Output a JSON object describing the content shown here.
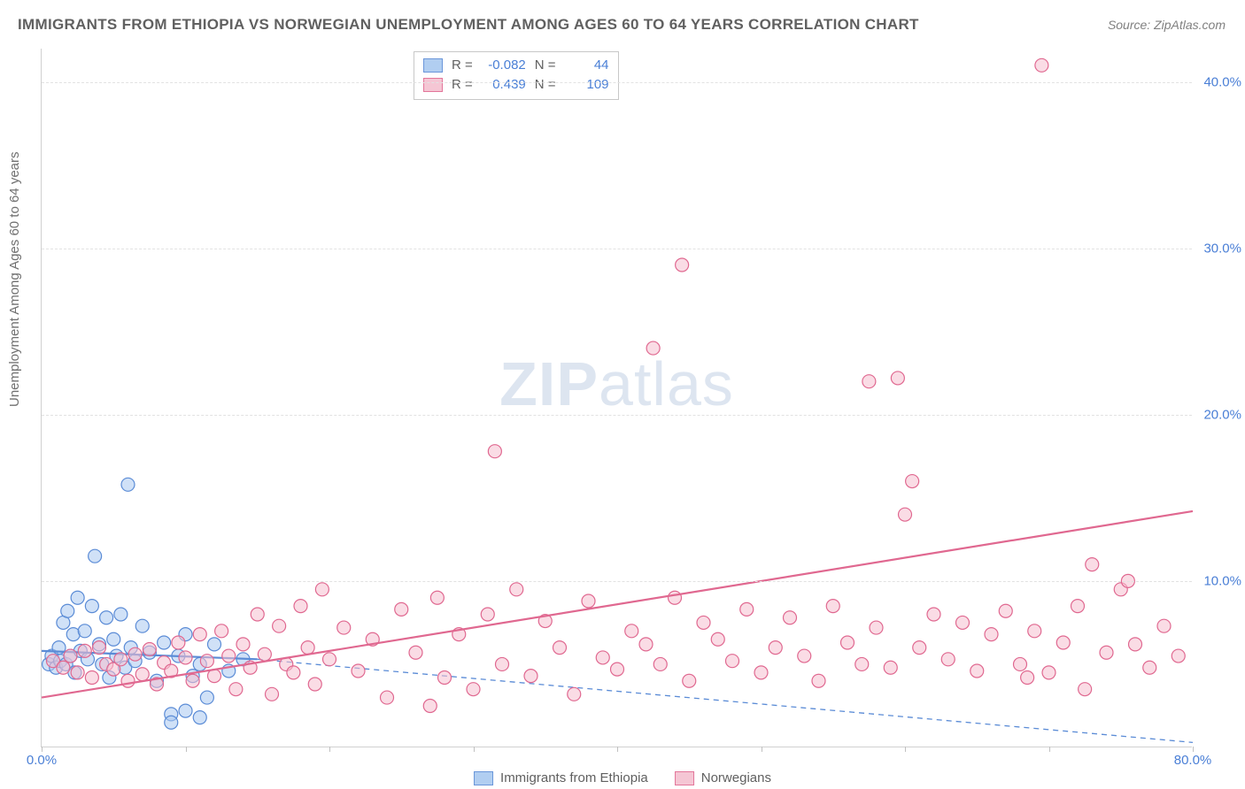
{
  "title": "IMMIGRANTS FROM ETHIOPIA VS NORWEGIAN UNEMPLOYMENT AMONG AGES 60 TO 64 YEARS CORRELATION CHART",
  "source": "Source: ZipAtlas.com",
  "y_axis_label": "Unemployment Among Ages 60 to 64 years",
  "watermark": {
    "zip": "ZIP",
    "atlas": "atlas"
  },
  "chart": {
    "type": "scatter",
    "x_domain": [
      0,
      80
    ],
    "y_domain": [
      0,
      42
    ],
    "x_ticks": [
      0,
      10,
      20,
      30,
      40,
      50,
      60,
      70,
      80
    ],
    "x_tick_labels": {
      "0": "0.0%",
      "80": "80.0%"
    },
    "y_ticks": [
      10,
      20,
      30,
      40
    ],
    "y_tick_labels": {
      "10": "10.0%",
      "20": "20.0%",
      "30": "30.0%",
      "40": "40.0%"
    },
    "background_color": "#ffffff",
    "grid_color": "#e2e2e2",
    "marker_radius": 7.5,
    "marker_stroke_width": 1.2,
    "trend_line_width": 2.2,
    "series": [
      {
        "name": "Immigrants from Ethiopia",
        "fill": "#a9c9f0",
        "stroke": "#5a8bd6",
        "fill_opacity": 0.55,
        "stats": {
          "R": "-0.082",
          "N": "44"
        },
        "trend": {
          "x1": 0,
          "y1": 5.8,
          "x2": 15,
          "y2": 5.3,
          "dash_x2": 80,
          "dash_y2": 0.3
        },
        "points": [
          [
            0.5,
            5.0
          ],
          [
            0.7,
            5.5
          ],
          [
            1.0,
            4.8
          ],
          [
            1.2,
            6.0
          ],
          [
            1.3,
            5.2
          ],
          [
            1.5,
            7.5
          ],
          [
            1.7,
            5.0
          ],
          [
            1.8,
            8.2
          ],
          [
            2.0,
            5.5
          ],
          [
            2.2,
            6.8
          ],
          [
            2.3,
            4.5
          ],
          [
            2.5,
            9.0
          ],
          [
            2.7,
            5.8
          ],
          [
            3.0,
            7.0
          ],
          [
            3.2,
            5.3
          ],
          [
            3.5,
            8.5
          ],
          [
            3.7,
            11.5
          ],
          [
            4.0,
            6.2
          ],
          [
            4.2,
            5.0
          ],
          [
            4.5,
            7.8
          ],
          [
            4.7,
            4.2
          ],
          [
            5.0,
            6.5
          ],
          [
            5.2,
            5.5
          ],
          [
            5.5,
            8.0
          ],
          [
            5.8,
            4.8
          ],
          [
            6.0,
            15.8
          ],
          [
            6.2,
            6.0
          ],
          [
            6.5,
            5.2
          ],
          [
            7.0,
            7.3
          ],
          [
            7.5,
            5.7
          ],
          [
            8.0,
            4.0
          ],
          [
            8.5,
            6.3
          ],
          [
            9.0,
            2.0
          ],
          [
            9.5,
            5.5
          ],
          [
            10.0,
            6.8
          ],
          [
            10.5,
            4.3
          ],
          [
            11.0,
            5.0
          ],
          [
            11.5,
            3.0
          ],
          [
            12.0,
            6.2
          ],
          [
            13.0,
            4.6
          ],
          [
            14.0,
            5.3
          ],
          [
            9.0,
            1.5
          ],
          [
            10.0,
            2.2
          ],
          [
            11.0,
            1.8
          ]
        ]
      },
      {
        "name": "Norwegians",
        "fill": "#f5c0d0",
        "stroke": "#e06890",
        "fill_opacity": 0.55,
        "stats": {
          "R": "0.439",
          "N": "109"
        },
        "trend": {
          "x1": 0,
          "y1": 3.0,
          "x2": 80,
          "y2": 14.2
        },
        "points": [
          [
            0.8,
            5.2
          ],
          [
            1.5,
            4.8
          ],
          [
            2.0,
            5.5
          ],
          [
            2.5,
            4.5
          ],
          [
            3.0,
            5.8
          ],
          [
            3.5,
            4.2
          ],
          [
            4.0,
            6.0
          ],
          [
            4.5,
            5.0
          ],
          [
            5.0,
            4.7
          ],
          [
            5.5,
            5.3
          ],
          [
            6.0,
            4.0
          ],
          [
            6.5,
            5.6
          ],
          [
            7.0,
            4.4
          ],
          [
            7.5,
            5.9
          ],
          [
            8.0,
            3.8
          ],
          [
            8.5,
            5.1
          ],
          [
            9.0,
            4.6
          ],
          [
            9.5,
            6.3
          ],
          [
            10.0,
            5.4
          ],
          [
            10.5,
            4.0
          ],
          [
            11.0,
            6.8
          ],
          [
            11.5,
            5.2
          ],
          [
            12.0,
            4.3
          ],
          [
            12.5,
            7.0
          ],
          [
            13.0,
            5.5
          ],
          [
            13.5,
            3.5
          ],
          [
            14.0,
            6.2
          ],
          [
            14.5,
            4.8
          ],
          [
            15.0,
            8.0
          ],
          [
            15.5,
            5.6
          ],
          [
            16.0,
            3.2
          ],
          [
            16.5,
            7.3
          ],
          [
            17.0,
            5.0
          ],
          [
            17.5,
            4.5
          ],
          [
            18.0,
            8.5
          ],
          [
            18.5,
            6.0
          ],
          [
            19.0,
            3.8
          ],
          [
            19.5,
            9.5
          ],
          [
            20.0,
            5.3
          ],
          [
            21.0,
            7.2
          ],
          [
            22.0,
            4.6
          ],
          [
            23.0,
            6.5
          ],
          [
            24.0,
            3.0
          ],
          [
            25.0,
            8.3
          ],
          [
            26.0,
            5.7
          ],
          [
            27.0,
            2.5
          ],
          [
            27.5,
            9.0
          ],
          [
            28.0,
            4.2
          ],
          [
            29.0,
            6.8
          ],
          [
            30.0,
            3.5
          ],
          [
            31.0,
            8.0
          ],
          [
            31.5,
            17.8
          ],
          [
            32.0,
            5.0
          ],
          [
            33.0,
            9.5
          ],
          [
            34.0,
            4.3
          ],
          [
            35.0,
            7.6
          ],
          [
            36.0,
            6.0
          ],
          [
            37.0,
            3.2
          ],
          [
            38.0,
            8.8
          ],
          [
            39.0,
            5.4
          ],
          [
            40.0,
            4.7
          ],
          [
            41.0,
            7.0
          ],
          [
            42.0,
            6.2
          ],
          [
            42.5,
            24.0
          ],
          [
            43.0,
            5.0
          ],
          [
            44.0,
            9.0
          ],
          [
            44.5,
            29.0
          ],
          [
            45.0,
            4.0
          ],
          [
            46.0,
            7.5
          ],
          [
            47.0,
            6.5
          ],
          [
            48.0,
            5.2
          ],
          [
            49.0,
            8.3
          ],
          [
            50.0,
            4.5
          ],
          [
            51.0,
            6.0
          ],
          [
            52.0,
            7.8
          ],
          [
            53.0,
            5.5
          ],
          [
            54.0,
            4.0
          ],
          [
            55.0,
            8.5
          ],
          [
            56.0,
            6.3
          ],
          [
            57.0,
            5.0
          ],
          [
            57.5,
            22.0
          ],
          [
            58.0,
            7.2
          ],
          [
            59.0,
            4.8
          ],
          [
            59.5,
            22.2
          ],
          [
            60.0,
            14.0
          ],
          [
            60.5,
            16.0
          ],
          [
            61.0,
            6.0
          ],
          [
            62.0,
            8.0
          ],
          [
            63.0,
            5.3
          ],
          [
            64.0,
            7.5
          ],
          [
            65.0,
            4.6
          ],
          [
            66.0,
            6.8
          ],
          [
            67.0,
            8.2
          ],
          [
            68.0,
            5.0
          ],
          [
            69.0,
            7.0
          ],
          [
            69.5,
            41.0
          ],
          [
            70.0,
            4.5
          ],
          [
            71.0,
            6.3
          ],
          [
            72.0,
            8.5
          ],
          [
            73.0,
            11.0
          ],
          [
            74.0,
            5.7
          ],
          [
            75.0,
            9.5
          ],
          [
            75.5,
            10.0
          ],
          [
            76.0,
            6.2
          ],
          [
            77.0,
            4.8
          ],
          [
            78.0,
            7.3
          ],
          [
            79.0,
            5.5
          ],
          [
            72.5,
            3.5
          ],
          [
            68.5,
            4.2
          ]
        ]
      }
    ]
  },
  "legend": {
    "series_a": "Immigrants from Ethiopia",
    "series_b": "Norwegians"
  }
}
